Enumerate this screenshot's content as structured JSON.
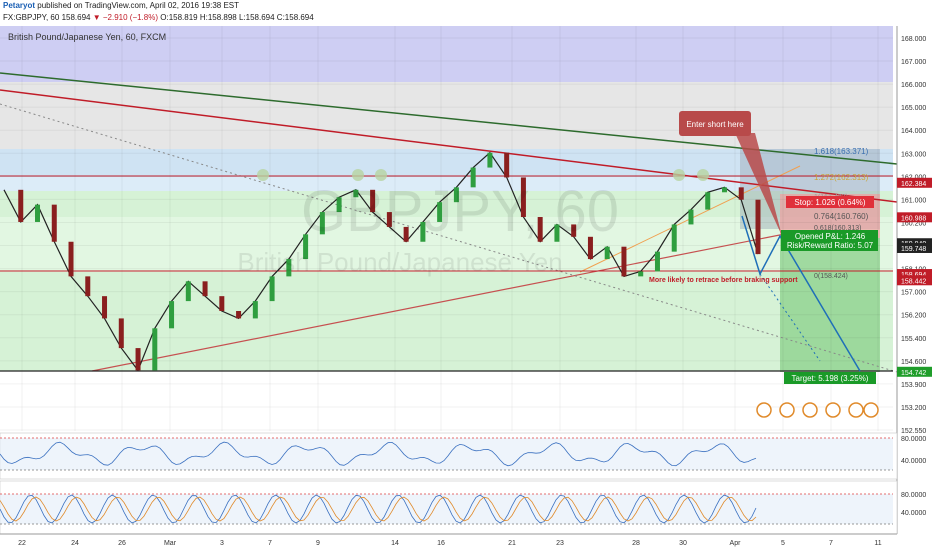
{
  "header": {
    "author": "Petaryot",
    "published": "published on TradingView.com, April 02, 2016 19:38 EST",
    "quote": "FX:GBPJPY, 60",
    "last": "158.694",
    "change": "▼ −2.910 (−1.8%)",
    "ohlc": "O:158.819 H:158.898 L:158.694 C:158.694"
  },
  "chart_data": {
    "type": "line",
    "title": "British Pound/Japanese Yen, 60, FXCM",
    "watermark": "GBPJPY, 60",
    "watermark_sub": "British Pound/Japanese Yen",
    "ylim": [
      152.55,
      168.4
    ],
    "x_ticks": [
      "22",
      "24",
      "26",
      "Mar",
      "3",
      "7",
      "9",
      "14",
      "16",
      "21",
      "23",
      "28",
      "30",
      "Apr",
      "5",
      "7",
      "11"
    ],
    "y_ticks": [
      "168.000",
      "167.000",
      "166.000",
      "165.000",
      "164.000",
      "163.000",
      "162.000",
      "161.000",
      "160.200",
      "159.000",
      "158.100",
      "157.000",
      "156.200",
      "155.400",
      "154.600",
      "153.900",
      "153.200",
      "152.550"
    ],
    "price_tags": [
      {
        "label": "162.384",
        "value": 162.384,
        "color": "#c01c28"
      },
      {
        "label": "160.988",
        "value": 160.988,
        "color": "#c01c28"
      },
      {
        "label": "159.940",
        "value": 159.94,
        "color": "#222222"
      },
      {
        "label": "159.748",
        "value": 159.748,
        "color": "#222222"
      },
      {
        "label": "158.694",
        "value": 158.694,
        "color": "#c01c28"
      },
      {
        "label": "158.442",
        "value": 158.442,
        "color": "#c01c28"
      },
      {
        "label": "154.742",
        "value": 154.742,
        "color": "#1f9d2a"
      }
    ],
    "price_series": {
      "name": "GBPJPY",
      "x": [
        0,
        1,
        2,
        3,
        4,
        5,
        6,
        7,
        8,
        9,
        10,
        11,
        12,
        13,
        14,
        15,
        16,
        17,
        18,
        19,
        20,
        21,
        22,
        23,
        24,
        25,
        26,
        27,
        28,
        29,
        30,
        31,
        32,
        33,
        34,
        35,
        36,
        37,
        38,
        39,
        40,
        41,
        42,
        43,
        44,
        45
      ],
      "y": [
        162.1,
        160.8,
        161.5,
        160.0,
        158.6,
        157.8,
        156.9,
        155.7,
        154.8,
        156.5,
        157.6,
        158.4,
        157.8,
        157.2,
        156.9,
        157.6,
        158.6,
        159.3,
        160.3,
        161.2,
        161.8,
        162.1,
        161.2,
        160.6,
        160.0,
        160.8,
        161.6,
        162.2,
        163.0,
        163.6,
        162.6,
        161.0,
        160.0,
        160.7,
        160.2,
        159.3,
        159.8,
        158.6,
        158.8,
        159.6,
        160.7,
        161.3,
        162.0,
        162.2,
        161.7,
        159.5
      ]
    },
    "fib_labels": [
      "1.618(163.371)",
      "1.272(162.313)",
      "1(161.482)",
      "0.764(160.760)",
      "0.618(160.313)",
      "0(158.424)"
    ],
    "stop_label": "Stop: 1.026 (0.64%)",
    "pnl_label": "Opened P&L: 1.246",
    "rr_label": "Risk/Reward Ratio: 5.07",
    "target_label": "Target: 5.198 (3.25%)",
    "annotation_short": "Enter short here",
    "annotation_note": "More likely to retrace before braking support",
    "rsi_ticks": [
      "80.0000",
      "40.0000"
    ],
    "stoch_ticks": [
      "80.0000",
      "40.0000"
    ]
  }
}
